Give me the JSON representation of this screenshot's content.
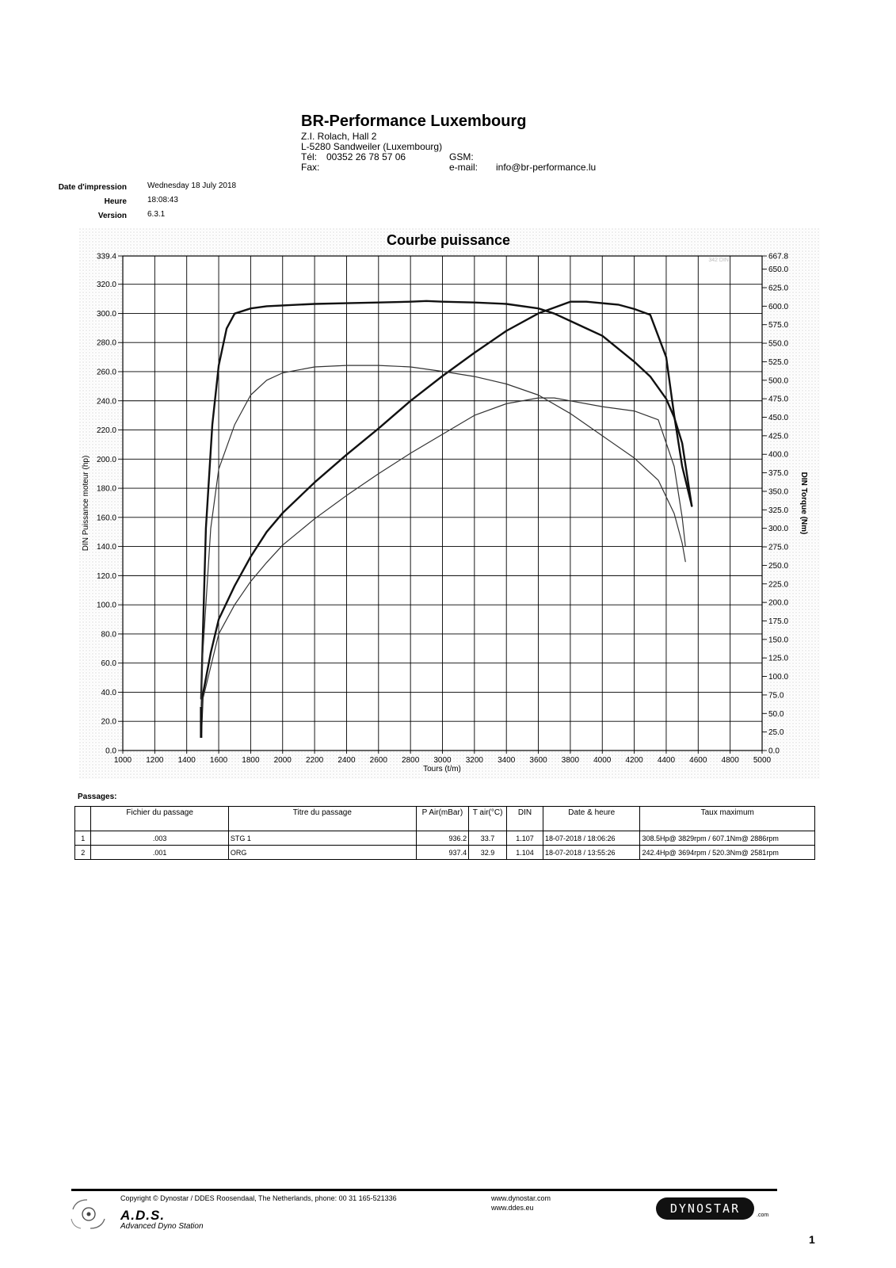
{
  "header": {
    "company": "BR-Performance Luxembourg",
    "address1": "Z.I. Rolach, Hall 2",
    "address2": "L-5280 Sandweiler (Luxembourg)",
    "tel_label": "Tél:",
    "tel_value": "00352 26 78 57 06",
    "gsm_label": "GSM:",
    "fax_label": "Fax:",
    "email_label": "e-mail:",
    "email_value": "info@br-performance.lu"
  },
  "print_info": {
    "date_label": "Date d'impression",
    "date_value": "Wednesday 18 July 2018",
    "time_label": "Heure",
    "time_value": "18:08:43",
    "version_label": "Version",
    "version_value": "6.3.1"
  },
  "chart_data": {
    "type": "line",
    "title": "Courbe puissance",
    "xlabel": "Tours (t/m)",
    "ylabel_left": "DIN Puissance moteur (hp)",
    "ylabel_right": "DIN Torque (Nm)",
    "xlim": [
      1000,
      5000
    ],
    "ylim_left": [
      0,
      339.4
    ],
    "ylim_right": [
      0,
      667.8
    ],
    "x_ticks": [
      "1000",
      "1200",
      "1400",
      "1600",
      "1800",
      "2000",
      "2200",
      "2400",
      "2600",
      "2800",
      "3000",
      "3200",
      "3400",
      "3600",
      "3800",
      "4000",
      "4200",
      "4400",
      "4600",
      "4800",
      "5000"
    ],
    "y_left_ticks": [
      "0.0",
      "20.0",
      "40.0",
      "60.0",
      "80.0",
      "100.0",
      "120.0",
      "140.0",
      "160.0",
      "180.0",
      "200.0",
      "220.0",
      "240.0",
      "260.0",
      "280.0",
      "300.0",
      "320.0",
      "339.4"
    ],
    "y_right_ticks": [
      "0.0",
      "25.0",
      "50.0",
      "75.0",
      "100.0",
      "125.0",
      "150.0",
      "175.0",
      "200.0",
      "225.0",
      "250.0",
      "275.0",
      "300.0",
      "325.0",
      "350.0",
      "375.0",
      "400.0",
      "425.0",
      "450.0",
      "475.0",
      "500.0",
      "525.0",
      "550.0",
      "575.0",
      "600.0",
      "625.0",
      "650.0",
      "667.8"
    ],
    "grid": true,
    "series": [
      {
        "run": 1,
        "quantity": "torque",
        "axis": "right",
        "color": "#111111",
        "width": 2.4,
        "x": [
          1490,
          1500,
          1520,
          1560,
          1600,
          1650,
          1700,
          1800,
          1900,
          2000,
          2200,
          2400,
          2600,
          2800,
          2900,
          3000,
          3200,
          3400,
          3600,
          3700,
          3800,
          3900,
          4000,
          4200,
          4300,
          4400,
          4450,
          4500,
          4560
        ],
        "y": [
          70,
          150,
          300,
          440,
          520,
          570,
          590,
          597,
          600,
          601,
          603,
          604,
          605,
          606,
          607,
          606,
          605,
          603,
          597,
          590,
          580,
          570,
          560,
          525,
          505,
          475,
          450,
          415,
          330
        ]
      },
      {
        "run": 1,
        "quantity": "power",
        "axis": "left",
        "color": "#111111",
        "width": 2.4,
        "x": [
          1490,
          1500,
          1550,
          1600,
          1700,
          1800,
          1900,
          2000,
          2200,
          2400,
          2600,
          2800,
          3000,
          3200,
          3400,
          3600,
          3700,
          3800,
          3900,
          4000,
          4100,
          4200,
          4300,
          4400,
          4450,
          4500,
          4560
        ],
        "y": [
          12,
          38,
          67,
          90,
          113,
          133,
          150,
          163,
          184,
          203,
          221,
          240,
          257,
          273,
          288,
          300,
          304,
          308,
          308,
          307,
          306,
          303,
          299,
          270,
          230,
          195,
          168
        ]
      },
      {
        "run": 2,
        "quantity": "torque",
        "axis": "right",
        "color": "#333333",
        "width": 1.2,
        "x": [
          1490,
          1500,
          1550,
          1600,
          1700,
          1800,
          1900,
          2000,
          2200,
          2400,
          2600,
          2800,
          3000,
          3200,
          3400,
          3600,
          3800,
          4000,
          4200,
          4350,
          4450,
          4500,
          4520
        ],
        "y": [
          60,
          130,
          300,
          380,
          440,
          480,
          500,
          510,
          518,
          520,
          520,
          518,
          512,
          505,
          495,
          480,
          455,
          425,
          395,
          365,
          320,
          280,
          255
        ]
      },
      {
        "run": 2,
        "quantity": "power",
        "axis": "left",
        "color": "#333333",
        "width": 1.2,
        "x": [
          1490,
          1500,
          1600,
          1700,
          1800,
          1900,
          2000,
          2200,
          2400,
          2600,
          2800,
          3000,
          3200,
          3400,
          3600,
          3700,
          3800,
          4000,
          4200,
          4350,
          4450,
          4500,
          4520
        ],
        "y": [
          10,
          35,
          80,
          100,
          116,
          129,
          141,
          159,
          175,
          190,
          204,
          217,
          230,
          238,
          242,
          242,
          240,
          236,
          233,
          227,
          195,
          160,
          140
        ]
      }
    ],
    "annotation": "342 DIN"
  },
  "runs_table": {
    "label": "Passages:",
    "headers": [
      "",
      "Fichier du passage",
      "Titre du passage",
      "P Air(mBar)",
      "T air(°C)",
      "DIN",
      "Date & heure",
      "Taux maximum"
    ],
    "rows": [
      {
        "num": "1",
        "file": ".003",
        "title": "STG 1",
        "pair": "936.2",
        "tair": "33.7",
        "din": "1.107",
        "datetime": "18-07-2018 / 18:06:26",
        "max": "308.5Hp@ 3829rpm / 607.1Nm@ 2886rpm"
      },
      {
        "num": "2",
        "file": ".001",
        "title": "ORG",
        "pair": "937.4",
        "tair": "32.9",
        "din": "1.104",
        "datetime": "18-07-2018 / 13:55:26",
        "max": "242.4Hp@ 3694rpm / 520.3Nm@ 2581rpm"
      }
    ]
  },
  "footer": {
    "copyright": "Copyright © Dynostar / DDES Roosendaal, The Netherlands, phone: 00 31 165-521336",
    "web1": "www.dynostar.com",
    "web2": "www.ddes.eu",
    "ads_name": "A.D.S.",
    "ads_sub": "Advanced Dyno Station",
    "logo_text": "DYNOSTAR",
    "logo_suffix": ".com",
    "page_number": "1"
  }
}
